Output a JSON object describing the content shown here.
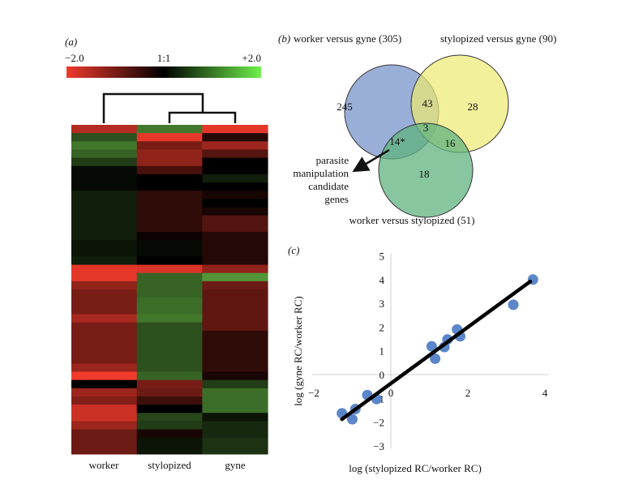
{
  "chart_data": [
    {
      "type": "heatmap",
      "panel_label": "(a)",
      "colorbar": {
        "min_label": "−2.0",
        "mid_label": "1:1",
        "max_label": "+2.0",
        "range": [
          -2,
          2
        ],
        "low_color": "#f03a2c",
        "mid_color": "#000000",
        "high_color": "#6ef04a"
      },
      "columns": [
        "worker",
        "stylopized",
        "gyne"
      ],
      "dendrogram": "((stylopized, gyne), worker)",
      "values": [
        [
          -1.5,
          0.8,
          1.2,
          1.0,
          0.6,
          0.1,
          0.1,
          0.1,
          0.3,
          0.3,
          0.3,
          0.3,
          0.3,
          0.3,
          0.2,
          0.2,
          0.3,
          -1.9,
          -1.9,
          -1.2,
          -1.0,
          -1.0,
          -1.0,
          -1.4,
          -1.0,
          -1.0,
          -1.0,
          -1.0,
          -1.0,
          -1.3,
          -2.0,
          0.0,
          -1.3,
          -1.1,
          -1.7,
          -1.7,
          -1.3,
          -0.9,
          -0.9,
          -0.9
        ],
        [
          1.2,
          -1.9,
          -1.0,
          -1.2,
          -1.2,
          -0.6,
          0.0,
          0.0,
          -0.4,
          -0.4,
          -0.4,
          -0.4,
          -0.4,
          -0.1,
          0.1,
          0.1,
          0.0,
          -1.8,
          1.0,
          1.0,
          1.0,
          1.1,
          1.1,
          1.2,
          0.8,
          0.8,
          0.8,
          0.8,
          0.8,
          0.8,
          1.0,
          -1.0,
          -0.9,
          -0.5,
          0.0,
          0.7,
          0.6,
          -0.2,
          0.2,
          0.2
        ],
        [
          -1.9,
          -0.3,
          -1.3,
          -0.7,
          0.0,
          0.0,
          0.3,
          0.0,
          -0.2,
          0.0,
          -0.2,
          -0.7,
          -0.7,
          -0.3,
          -0.3,
          -0.3,
          -0.3,
          -1.2,
          1.5,
          -0.9,
          -0.8,
          -0.8,
          -0.8,
          -0.8,
          -0.8,
          -0.4,
          -0.4,
          -0.4,
          -0.4,
          -0.4,
          -0.2,
          0.6,
          1.1,
          1.1,
          1.1,
          0.2,
          0.4,
          0.4,
          0.5,
          0.5
        ]
      ]
    },
    {
      "type": "venn",
      "panel_label": "(b)",
      "sets": [
        {
          "name": "worker versus gyne (305)",
          "color": "#8fa6d4"
        },
        {
          "name": "stylopized versus gyne (90)",
          "color": "#eeea70"
        },
        {
          "name": "worker versus stylopized (51)",
          "color": "#5fb37f"
        }
      ],
      "regions": {
        "wg_only": "245",
        "wg_sg": "43",
        "sg_only": "28",
        "all": "3",
        "wg_ws": "14*",
        "sg_ws": "16",
        "ws_only": "18"
      },
      "annotation": [
        "parasite",
        "manipulation",
        "candidate",
        "genes"
      ]
    },
    {
      "type": "scatter",
      "panel_label": "(c)",
      "xlabel": "log (stylopized RC/worker RC)",
      "ylabel": "log (gyne RC/worker RC)",
      "xlim": [
        -2,
        4
      ],
      "ylim": [
        -3,
        5
      ],
      "xticks": [
        "−2",
        "0",
        "2",
        "4"
      ],
      "yticks": [
        "−3",
        "−2",
        "−1",
        "0",
        "1",
        "2",
        "3",
        "4",
        "5"
      ],
      "point_color": "#5b86c9",
      "points": [
        [
          -1.27,
          -1.63
        ],
        [
          -1.0,
          -1.88
        ],
        [
          -0.92,
          -1.45
        ],
        [
          -0.61,
          -0.86
        ],
        [
          -0.37,
          -1.03
        ],
        [
          1.06,
          1.19
        ],
        [
          1.15,
          0.67
        ],
        [
          1.39,
          1.16
        ],
        [
          1.47,
          1.48
        ],
        [
          1.72,
          1.9
        ],
        [
          1.8,
          1.61
        ],
        [
          3.18,
          2.94
        ],
        [
          3.69,
          4.0
        ]
      ],
      "trendline": {
        "x": [
          -1.27,
          3.62
        ],
        "y": [
          -1.88,
          3.92
        ]
      }
    }
  ]
}
